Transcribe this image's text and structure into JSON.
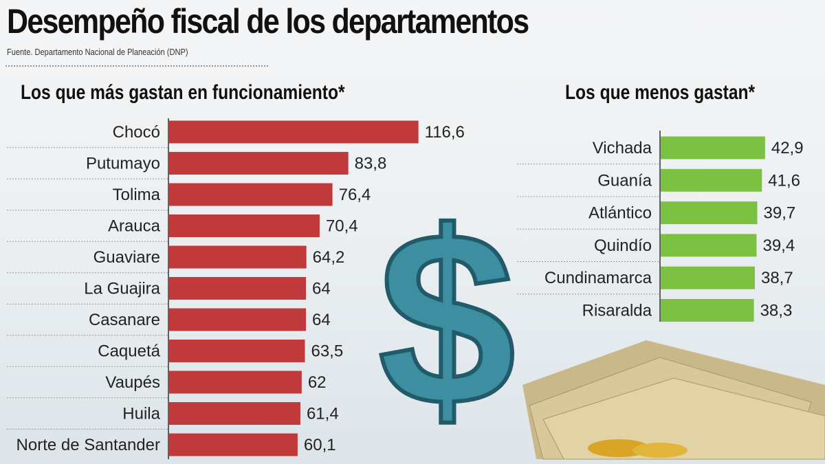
{
  "title": "Desempeño fiscal de los departamentos",
  "source": "Fuente. Departamento Nacional de Planeación (DNP)",
  "chart_data": [
    {
      "type": "bar",
      "orientation": "horizontal",
      "title": "Los que más gastan en funcionamiento*",
      "categories": [
        "Chocó",
        "Putumayo",
        "Tolima",
        "Arauca",
        "Guaviare",
        "La Guajira",
        "Casanare",
        "Caquetá",
        "Vaupés",
        "Huila",
        "Norte de Santander"
      ],
      "values": [
        116.6,
        83.8,
        76.4,
        70.4,
        64.2,
        64,
        64,
        63.5,
        62,
        61.4,
        60.1
      ],
      "value_labels": [
        "116,6",
        "83,8",
        "76,4",
        "70,4",
        "64,2",
        "64",
        "64",
        "63,5",
        "62",
        "61,4",
        "60,1"
      ],
      "color": "#c0393b"
    },
    {
      "type": "bar",
      "orientation": "horizontal",
      "title": "Los que menos gastan*",
      "categories": [
        "Vichada",
        "Guanía",
        "Atlántico",
        "Quindío",
        "Cundinamarca",
        "Risaralda"
      ],
      "values": [
        42.9,
        41.6,
        39.7,
        39.4,
        38.7,
        38.3
      ],
      "value_labels": [
        "42,9",
        "41,6",
        "39,7",
        "39,4",
        "38,7",
        "38,3"
      ],
      "color": "#7dc142"
    }
  ]
}
